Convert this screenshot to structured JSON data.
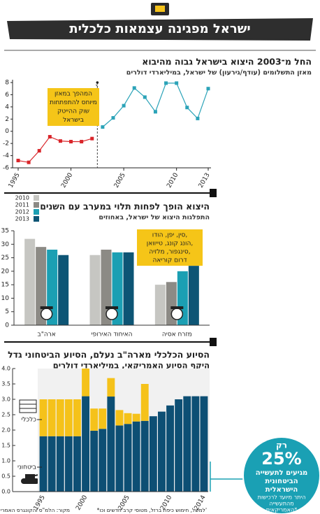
{
  "header": {
    "title": "ישראל מפגינה עצמאות כלכלית"
  },
  "chart_data": [
    {
      "type": "line",
      "title": "החל מ־2003 היצוא בישראל גבוה מהיבוא",
      "subtitle": "מאזן התשלומים (עודף/גירעון) של ישראל, במיליארדי דולרים",
      "x": [
        1995,
        1996,
        1997,
        1998,
        1999,
        2000,
        2001,
        2002,
        2003,
        2004,
        2005,
        2006,
        2007,
        2008,
        2009,
        2010,
        2011,
        2012,
        2013
      ],
      "series": [
        {
          "color": "#d9252a",
          "values": [
            -4.8,
            -5.1,
            -3.2,
            -0.9,
            -1.6,
            -1.7,
            -1.7,
            -1.2,
            null,
            null,
            null,
            null,
            null,
            null,
            null,
            null,
            null,
            null,
            null
          ]
        },
        {
          "color": "#2ba3b8",
          "values": [
            null,
            null,
            null,
            null,
            null,
            null,
            null,
            null,
            0.7,
            2.2,
            4.2,
            7.1,
            5.6,
            3.2,
            7.9,
            7.9,
            3.9,
            2.1,
            7.0
          ]
        }
      ],
      "xlim": [
        1995,
        2013
      ],
      "xticks": [
        1995,
        2000,
        2005,
        2010,
        2013
      ],
      "ylim": [
        -6,
        8
      ],
      "yticks": [
        -6,
        -4,
        -2,
        0,
        2,
        4,
        6,
        8
      ],
      "annotation_lines": [
        "המהפך במאזן",
        "מיוחס להתפתחות",
        "שוק ההייטק",
        "בישראל"
      ]
    },
    {
      "type": "grouped_bar",
      "title": "היצוא הופך לפחות תלוי במערב עם השנים",
      "subtitle": "התפלגות היצוא של ישראל, באחוזים",
      "categories": [
        "ארה\"ב",
        "האיחוד האירופי",
        "מזרח אסיה"
      ],
      "series": [
        {
          "name": "2010",
          "color": "#c6c6c2",
          "values": [
            32,
            26,
            15
          ]
        },
        {
          "name": "2011",
          "color": "#8c8a85",
          "values": [
            29,
            28,
            16
          ]
        },
        {
          "name": "2012",
          "color": "#1b9fb3",
          "values": [
            28,
            27,
            20
          ]
        },
        {
          "name": "2013",
          "color": "#0d5575",
          "values": [
            26,
            27,
            22
          ]
        }
      ],
      "ylim": [
        0,
        35
      ],
      "yticks": [
        0,
        5,
        10,
        15,
        20,
        25,
        30,
        35
      ],
      "legend": "top-left",
      "annotation_lines": [
        "סין, יפן, הודו,",
        "הונג קונג, טייוואן,",
        "סינגפור, מלזיה,",
        "דרום קוריאה"
      ]
    },
    {
      "type": "stacked_bar",
      "title": "הסיוע הכלכלי מארה\"ב נעלם, הסיוע הביטחוני גדל",
      "subtitle": "היקף הסיוע האמריקאי, במיליארדי דולרים",
      "categories": [
        "1995",
        null,
        null,
        null,
        null,
        "2000",
        null,
        null,
        null,
        null,
        "2005",
        null,
        null,
        null,
        null,
        "2010",
        null,
        null,
        null,
        "2014"
      ],
      "series": [
        {
          "name": "ביטחוני",
          "color": "#0d4f74",
          "values": [
            1.8,
            1.8,
            1.8,
            1.8,
            1.8,
            3.1,
            1.98,
            2.04,
            3.09,
            2.15,
            2.2,
            2.28,
            2.3,
            2.45,
            2.6,
            2.8,
            3.0,
            3.1,
            3.1,
            3.1
          ]
        },
        {
          "name": "כלכלי",
          "color": "#f5c21a",
          "values": [
            1.2,
            1.2,
            1.2,
            1.2,
            1.2,
            0.9,
            0.72,
            0.66,
            0.6,
            0.5,
            0.35,
            0.25,
            1.2,
            0,
            0,
            0,
            0,
            0,
            0,
            0
          ]
        }
      ],
      "ylim": [
        0,
        4
      ],
      "yticks": [
        {
          "value": 0,
          "label": "0.0"
        },
        0.5,
        {
          "value": 1,
          "label": "1.0"
        },
        1.5,
        {
          "value": 2,
          "label": "2.0"
        },
        2.5,
        {
          "value": 3,
          "label": "3.0"
        },
        3.5,
        {
          "value": 4,
          "label": "4.0"
        }
      ],
      "callout": {
        "lines": [
          "רק",
          "25%",
          "מגיעים לתעשייה",
          "הביטחונית",
          "הישראלית"
        ],
        "sub_lines": [
          "היתר מיועד לרכישות",
          "מהתעשייה",
          "האמריקאית*"
        ]
      }
    }
  ],
  "footer": {
    "source": "מקור: הלמ\"ס והקונגרס האמריקאי",
    "note": "*למשל, חימוש כיפת ברזל, מטוסי קרב חדשים וכו'"
  }
}
